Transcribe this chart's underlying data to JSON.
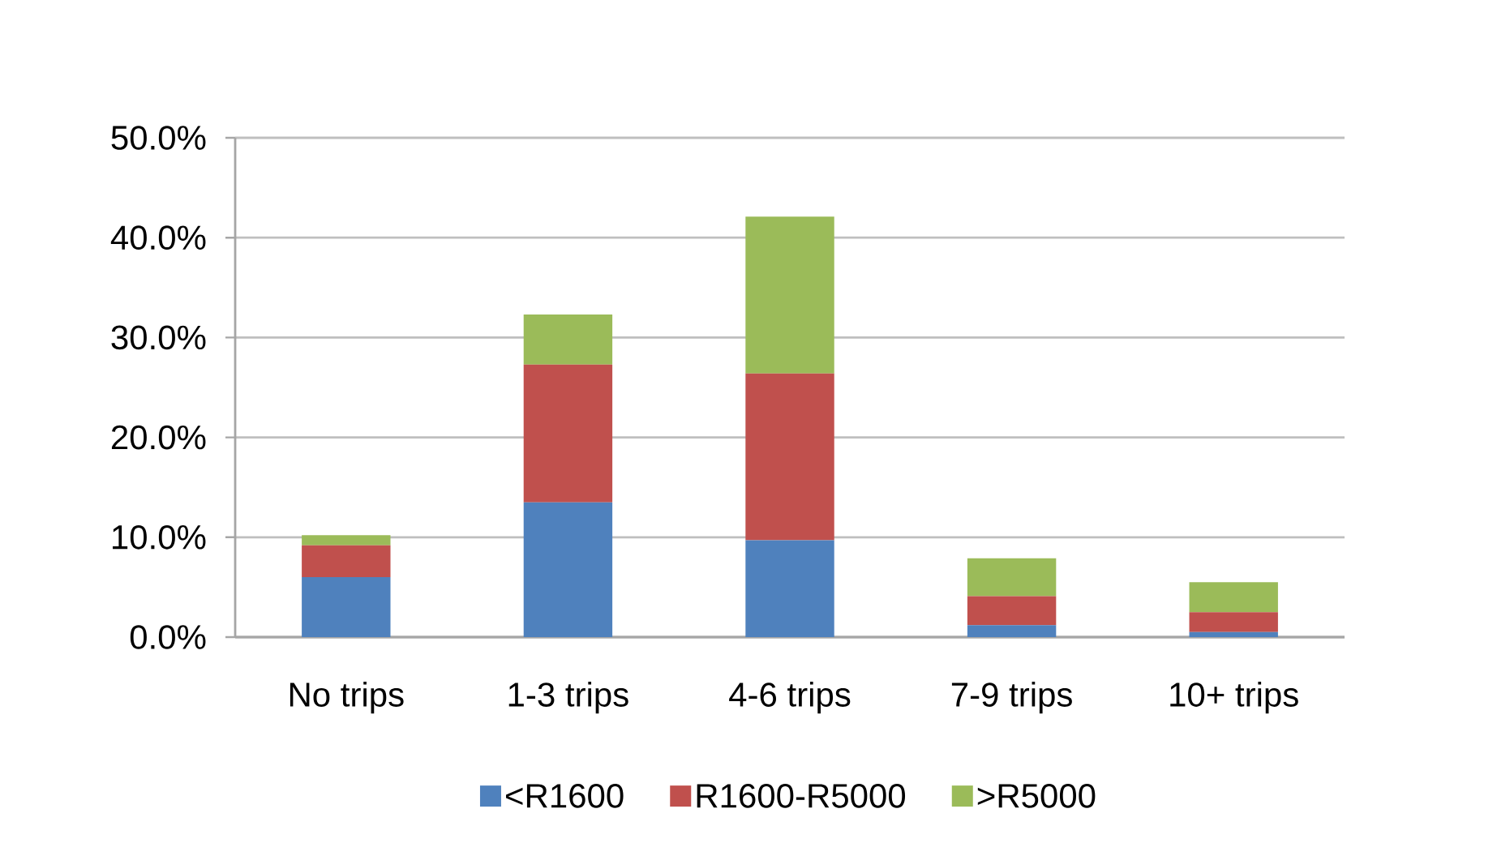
{
  "chart_data": {
    "type": "bar",
    "stacked": true,
    "categories": [
      "No trips",
      "1-3 trips",
      "4-6 trips",
      "7-9 trips",
      "10+ trips"
    ],
    "series": [
      {
        "name": "<R1600",
        "color": "#4f81bd",
        "values": [
          6.0,
          13.5,
          9.7,
          1.2,
          0.5
        ]
      },
      {
        "name": "R1600-R5000",
        "color": "#c0504d",
        "values": [
          3.2,
          13.8,
          16.7,
          2.9,
          2.0
        ]
      },
      {
        "name": ">R5000",
        "color": "#9bbb59",
        "values": [
          1.0,
          5.0,
          15.7,
          3.8,
          3.0
        ]
      }
    ],
    "ylim": [
      0,
      50
    ],
    "yticks": [
      {
        "value": 0,
        "label": "0.0%"
      },
      {
        "value": 10,
        "label": "10.0%"
      },
      {
        "value": 20,
        "label": "20.0%"
      },
      {
        "value": 30,
        "label": "30.0%"
      },
      {
        "value": 40,
        "label": "40.0%"
      },
      {
        "value": 50,
        "label": "50.0%"
      }
    ],
    "grid": "y",
    "legend": "bottom"
  }
}
